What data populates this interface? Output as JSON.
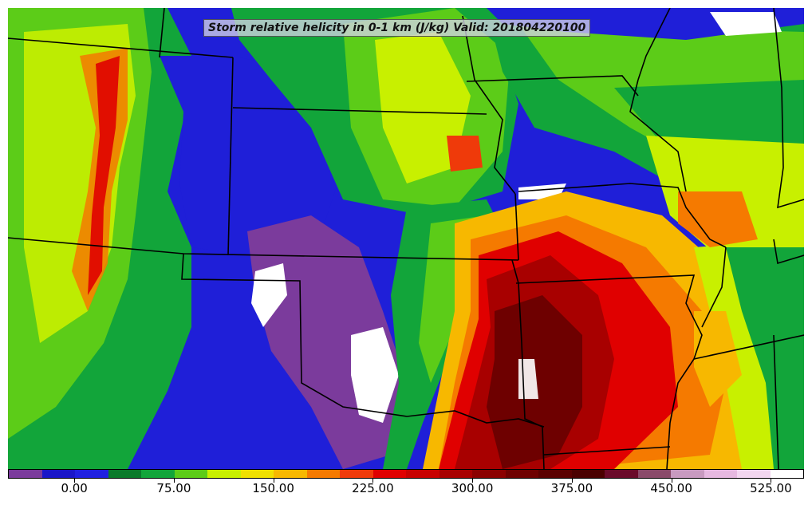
{
  "title": "Storm relative helicity in 0-1 km (J/kg) Valid: 201804220100",
  "map": {
    "variable": "Storm relative helicity in 0-1 km",
    "units": "J/kg",
    "valid": "201804220100",
    "boundaries_color": "#000000"
  },
  "colorbar": {
    "levels": [
      -50,
      -25,
      0,
      25,
      50,
      75,
      100,
      125,
      150,
      175,
      200,
      225,
      250,
      275,
      300,
      325,
      350,
      375,
      400,
      425,
      450,
      475,
      500,
      525,
      550
    ],
    "colors": [
      "#7b3b9c",
      "#1a16c8",
      "#2020e0",
      "#0a7a2a",
      "#12a53a",
      "#5ccc18",
      "#c8f000",
      "#f0e000",
      "#f7b800",
      "#f57a00",
      "#ef3a0a",
      "#e00000",
      "#c80000",
      "#a80000",
      "#8b0000",
      "#6e0000",
      "#5a0000",
      "#4a0000",
      "#6a0a2a",
      "#8a4a6a",
      "#c89ac0",
      "#e6b8e0",
      "#f3d6f0",
      "#ffffff"
    ],
    "tick_labels": [
      "0.00",
      "75.00",
      "150.00",
      "225.00",
      "300.00",
      "375.00",
      "450.00",
      "525.00"
    ],
    "tick_values": [
      0,
      75,
      150,
      225,
      300,
      375,
      450,
      525
    ]
  }
}
